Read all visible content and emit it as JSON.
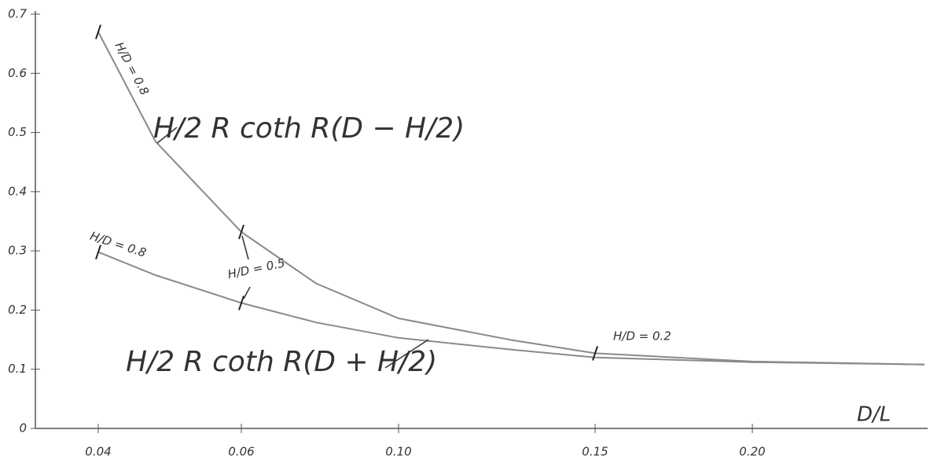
{
  "chart_data": {
    "type": "line",
    "x": [
      0.04,
      0.048,
      0.06,
      0.079,
      0.1,
      0.129,
      0.15,
      0.2,
      0.255
    ],
    "series": [
      {
        "color": "#8a8a8a",
        "values": [
          0.67,
          0.485,
          0.332,
          0.245,
          0.186,
          0.149,
          0.127,
          0.113,
          0.108
        ]
      },
      {
        "color": "#8a8a8a",
        "values": [
          0.298,
          0.259,
          0.212,
          0.179,
          0.153,
          0.133,
          0.12,
          0.112,
          0.108
        ]
      }
    ],
    "xlabel": "D/L",
    "xlim": [
      0.031,
      0.256
    ],
    "xticks": [
      0.04,
      0.06,
      {
        "value": 0.1,
        "label": "0.10"
      },
      0.15,
      {
        "value": 0.2,
        "label": "0.20"
      }
    ],
    "ylim": [
      0,
      0.7
    ],
    "yticks": [
      0,
      0.1,
      0.2,
      0.3,
      0.4,
      0.5,
      0.6,
      0.7
    ],
    "annotations": [
      "H/D = 0.8",
      "H/D = 0.8",
      "H/D = 0.5",
      "H/D = 0.2",
      "H/2 R coth R(D − H/2)",
      "H/2 R coth R(D + H/2)"
    ]
  }
}
